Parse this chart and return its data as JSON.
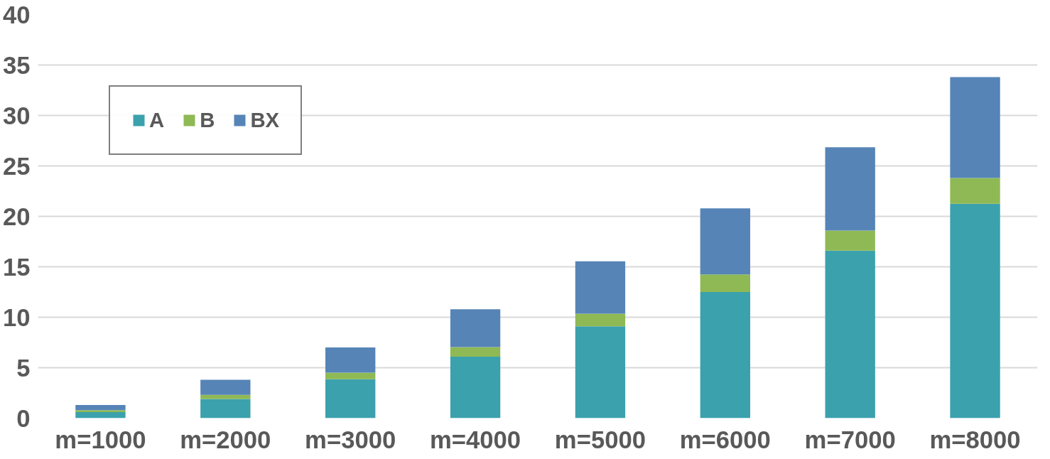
{
  "chart_data": {
    "type": "bar",
    "stacked": true,
    "categories": [
      "m=1000",
      "m=2000",
      "m=3000",
      "m=4000",
      "m=5000",
      "m=6000",
      "m=7000",
      "m=8000"
    ],
    "series": [
      {
        "name": "A",
        "color": "#3ba1ad",
        "values": [
          0.6,
          1.9,
          3.85,
          6.1,
          9.1,
          12.5,
          16.6,
          21.25
        ]
      },
      {
        "name": "B",
        "color": "#8fb954",
        "values": [
          0.2,
          0.4,
          0.65,
          0.95,
          1.25,
          1.75,
          2.0,
          2.55
        ]
      },
      {
        "name": "BX",
        "color": "#5684b7",
        "values": [
          0.5,
          1.5,
          2.5,
          3.75,
          5.2,
          6.55,
          8.25,
          10.0
        ]
      }
    ],
    "ylim": [
      0,
      40
    ],
    "yticks": [
      0,
      5,
      10,
      15,
      20,
      25,
      30,
      35,
      40
    ],
    "grid": "y",
    "legend": "top left"
  }
}
